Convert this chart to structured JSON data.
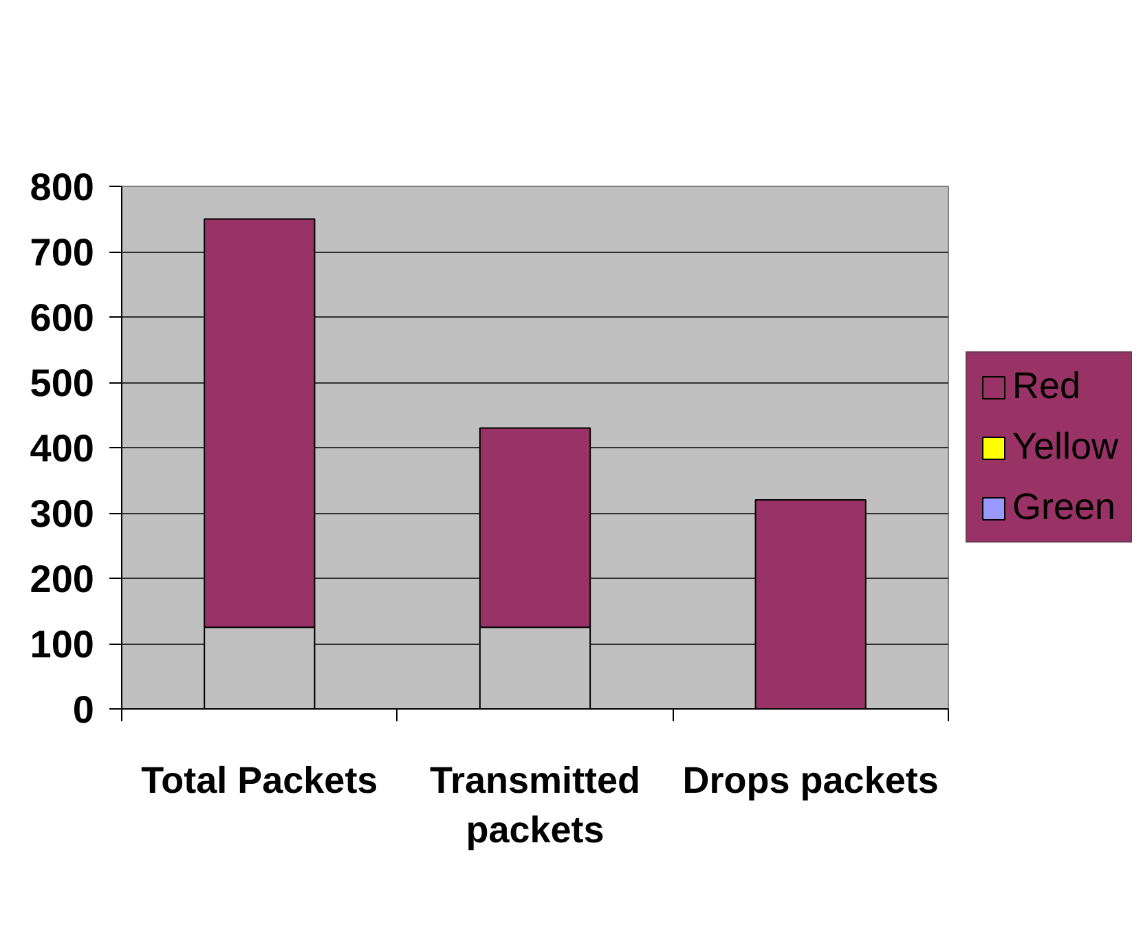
{
  "chart_data": {
    "type": "bar",
    "stacked": true,
    "categories": [
      "Total Packets",
      "Transmitted packets",
      "Drops packets"
    ],
    "series": [
      {
        "color": "#c0c0c0",
        "values": [
          125,
          125,
          null
        ]
      },
      {
        "name": "Red",
        "color": "#993366",
        "values": [
          625,
          305,
          320
        ]
      },
      {
        "name": "Yellow",
        "color": "#ffff00",
        "values": [
          null,
          null,
          null
        ]
      },
      {
        "name": "Green",
        "color": "#9999ff",
        "values": [
          null,
          null,
          null
        ]
      }
    ],
    "ylim": [
      0,
      800
    ],
    "yticks": [
      0,
      100,
      200,
      300,
      400,
      500,
      600,
      700,
      800
    ],
    "grid": "y",
    "legend": "right"
  }
}
